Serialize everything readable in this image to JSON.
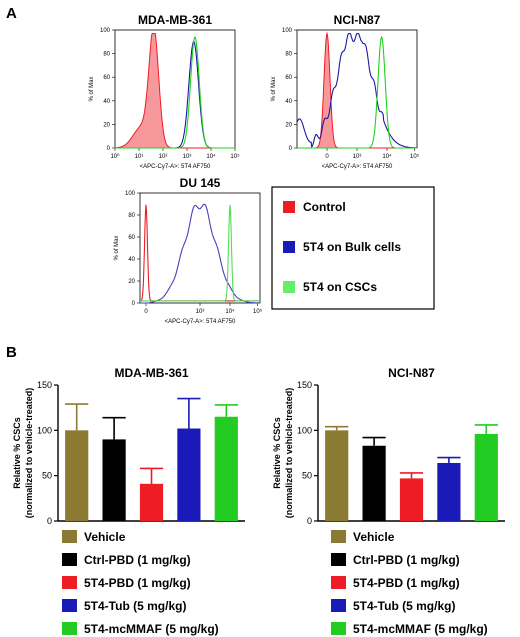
{
  "panels": {
    "a": "A",
    "b": "B"
  },
  "chart_data": [
    {
      "type": "area",
      "title": "MDA-MB-361",
      "xlabel": "<APC-Cy7-A>: 5T4 AF750",
      "ylabel": "% of Max",
      "yticks": [
        "0",
        "20",
        "40",
        "60",
        "80",
        "100"
      ],
      "xticks": [
        "10⁰",
        "10¹",
        "10²",
        "10³",
        "10⁴",
        "10⁵"
      ],
      "scale": "log",
      "series": [
        {
          "name": "Control",
          "peak_log": 1.6,
          "width": 0.28,
          "color": "#ee1c24",
          "filled": true
        },
        {
          "name": "5T4 on Bulk cells",
          "peak_log": 3.3,
          "width": 0.22,
          "color": "#1a1aa6"
        },
        {
          "name": "5T4 on CSCs",
          "peak_log": 3.35,
          "width": 0.2,
          "color": "#22d222"
        }
      ]
    },
    {
      "type": "area",
      "title": "NCI-N87",
      "xlabel": "<APC-Cy7-A>: 5T4 AF750",
      "ylabel": "% of Max",
      "yticks": [
        "0",
        "20",
        "40",
        "60",
        "80",
        "100"
      ],
      "xticks": [
        "0",
        "10³",
        "10⁴",
        "10⁵"
      ],
      "series": [
        {
          "name": "Control",
          "color": "#ee1c24",
          "filled": true
        },
        {
          "name": "5T4 on Bulk cells",
          "color": "#1a1aa6"
        },
        {
          "name": "5T4 on CSCs",
          "color": "#22d222"
        }
      ]
    },
    {
      "type": "area",
      "title": "DU 145",
      "xlabel": "<APC-Cy7-A>: 5T4 AF750",
      "ylabel": "% of Max",
      "yticks": [
        "0",
        "20",
        "40",
        "60",
        "80",
        "100"
      ],
      "xticks": [
        "0",
        "10³",
        "10⁴",
        "10⁵"
      ],
      "series": [
        {
          "name": "Control",
          "color": "#ee1c24"
        },
        {
          "name": "5T4 on Bulk cells",
          "color": "#4444bb"
        },
        {
          "name": "5T4 on CSCs",
          "color": "#55dd55"
        }
      ]
    },
    {
      "type": "bar",
      "title": "MDA-MB-361",
      "ylabel": "Relative % CSCs\n(normalized to vehicle-treated)",
      "ylim": [
        0,
        150
      ],
      "yticks": [
        "0",
        "50",
        "100",
        "150"
      ],
      "categories": [
        "Vehicle",
        "Ctrl-PBD (1 mg/kg)",
        "5T4-PBD (1 mg/kg)",
        "5T4-Tub (5 mg/kg)",
        "5T4-mcMMAF (5 mg/kg)"
      ],
      "values": [
        100,
        90,
        41,
        102,
        115
      ],
      "errors": [
        29,
        24,
        17,
        33,
        13
      ],
      "colors": [
        "#8b7a32",
        "#000000",
        "#ee1c24",
        "#1a1ab8",
        "#22cc22"
      ]
    },
    {
      "type": "bar",
      "title": "NCI-N87",
      "ylabel": "Relative % CSCs\n(normalized to vehicle-treated)",
      "ylim": [
        0,
        150
      ],
      "yticks": [
        "0",
        "50",
        "100",
        "150"
      ],
      "categories": [
        "Vehicle",
        "Ctrl-PBD (1 mg/kg)",
        "5T4-PBD (1 mg/kg)",
        "5T4-Tub (5 mg/kg)",
        "5T4-mcMMAF (5 mg/kg)"
      ],
      "values": [
        100,
        83,
        47,
        64,
        96
      ],
      "errors": [
        4,
        9,
        6,
        6,
        10
      ],
      "colors": [
        "#8b7a32",
        "#000000",
        "#ee1c24",
        "#1a1ab8",
        "#22cc22"
      ]
    }
  ],
  "legend_a": [
    {
      "label": "Control",
      "color": "#ee1c24"
    },
    {
      "label": "5T4 on Bulk cells",
      "color": "#1a1ab8"
    },
    {
      "label": "5T4 on CSCs",
      "color": "#66ee66"
    }
  ],
  "legend_b": [
    {
      "label": "Vehicle",
      "color": "#8b7a32"
    },
    {
      "label": "Ctrl-PBD (1 mg/kg)",
      "color": "#000000"
    },
    {
      "label": "5T4-PBD (1 mg/kg)",
      "color": "#ee1c24"
    },
    {
      "label": "5T4-Tub (5 mg/kg)",
      "color": "#1a1ab8"
    },
    {
      "label": "5T4-mcMMAF (5 mg/kg)",
      "color": "#22cc22"
    }
  ]
}
